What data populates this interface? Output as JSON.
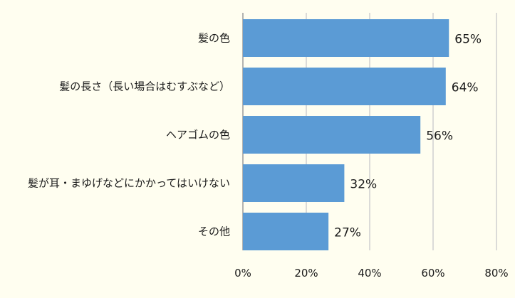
{
  "chart_data": {
    "type": "bar",
    "orientation": "horizontal",
    "categories": [
      "髪の色",
      "髪の長さ（長い場合はむすぶなど）",
      "ヘアゴムの色",
      "髪が耳・まゆげなどにかかってはいけない",
      "その他"
    ],
    "values": [
      65,
      64,
      56,
      32,
      27
    ],
    "value_labels": [
      "65%",
      "64%",
      "56%",
      "32%",
      "27%"
    ],
    "xlim": [
      0,
      80
    ],
    "xticks": [
      0,
      20,
      40,
      60,
      80
    ],
    "xtick_labels": [
      "0%",
      "20%",
      "40%",
      "60%",
      "80%"
    ],
    "grid": "vertical",
    "legend": "none",
    "bar_color": "#5b9bd5",
    "title": "",
    "xlabel": "",
    "ylabel": ""
  }
}
